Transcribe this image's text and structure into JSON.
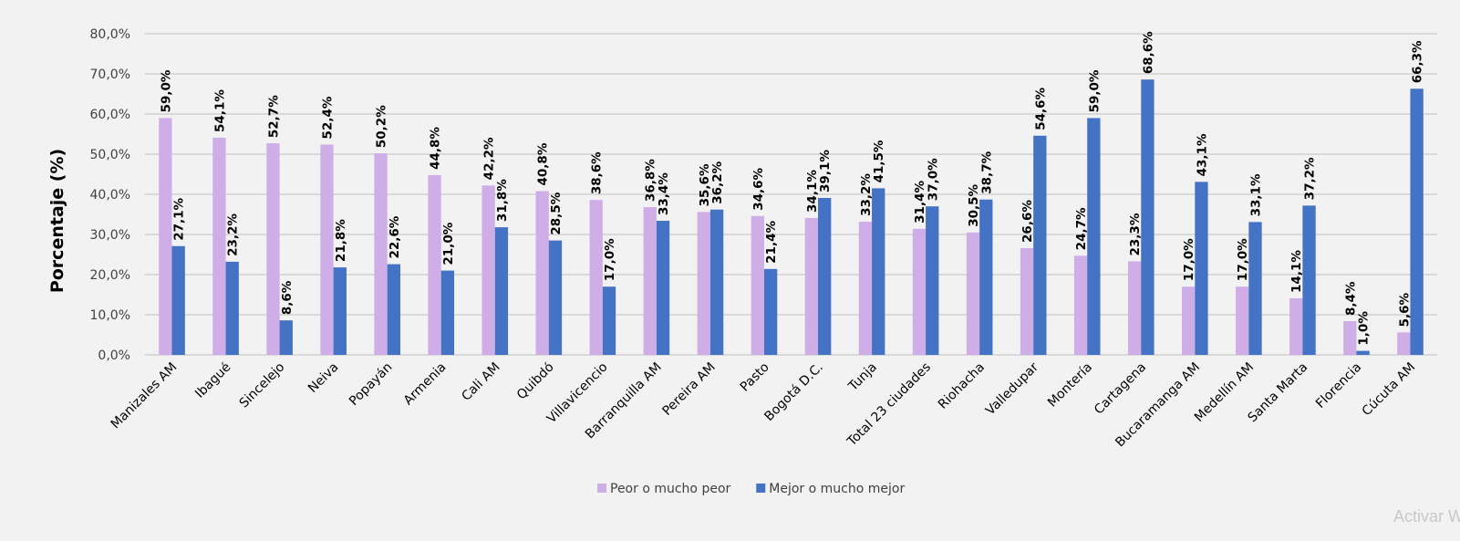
{
  "chart_data": {
    "type": "bar",
    "title": "",
    "xlabel": "",
    "ylabel": "Porcentaje (%)",
    "ylim": [
      0,
      80
    ],
    "yticks": [
      "0,0%",
      "10,0%",
      "20,0%",
      "30,0%",
      "40,0%",
      "50,0%",
      "60,0%",
      "70,0%",
      "80,0%"
    ],
    "grid": true,
    "legend_position": "bottom",
    "categories": [
      "Manizales AM",
      "Ibagué",
      "Sincelejo",
      "Neiva",
      "Popayán",
      "Armenia",
      "Cali AM",
      "Quibdó",
      "Villavicencio",
      "Barranquilla AM",
      "Pereira AM",
      "Pasto",
      "Bogotá D.C.",
      "Tunja",
      "Total 23 ciudades",
      "Riohacha",
      "Valledupar",
      "Montería",
      "Cartagena",
      "Bucaramanga AM",
      "Medellín AM",
      "Santa Marta",
      "Florencia",
      "Cúcuta AM"
    ],
    "series": [
      {
        "name": "Peor o mucho peor",
        "color": "#cfaee8",
        "values": [
          59.0,
          54.1,
          52.7,
          52.4,
          50.2,
          44.8,
          42.2,
          40.8,
          38.6,
          36.8,
          35.6,
          34.6,
          34.1,
          33.2,
          31.4,
          30.5,
          26.6,
          24.7,
          23.3,
          17.0,
          17.0,
          14.1,
          8.4,
          5.6
        ]
      },
      {
        "name": "Mejor o mucho mejor",
        "color": "#4472c4",
        "values": [
          27.1,
          23.2,
          8.6,
          21.8,
          22.6,
          21.0,
          31.8,
          28.5,
          17.0,
          33.4,
          36.2,
          21.4,
          39.1,
          41.5,
          37.0,
          38.7,
          54.6,
          59.0,
          68.6,
          43.1,
          33.1,
          37.2,
          1.0,
          66.3
        ]
      }
    ]
  },
  "watermark": "Activar W"
}
